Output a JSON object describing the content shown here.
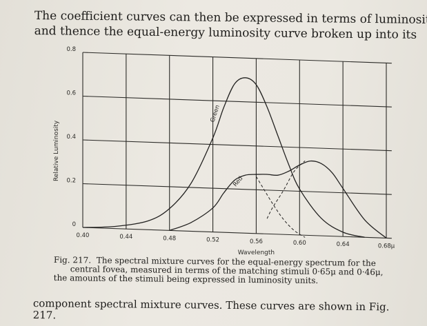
{
  "text": {
    "top_lines": [
      "The coefficient curves can then be expressed in terms of luminosity",
      "and thence the equal-energy luminosity curve broken up into its"
    ],
    "caption_label": "Fig. 217.",
    "caption_lines": [
      "The spectral mixture curves for the equal-energy spectrum for the",
      "central fovea, measured in terms of the matching stimuli 0·65μ and 0·46μ,",
      "the amounts of the stimuli being expressed in luminosity units."
    ],
    "bottom_lines": [
      "component spectral mixture curves.  These curves are shown in Fig.",
      "217."
    ]
  },
  "chart_data": {
    "type": "line",
    "xlabel": "Wavelength",
    "ylabel": "Relative Luminosity",
    "xlim": [
      0.4,
      0.68
    ],
    "ylim": [
      0,
      0.8
    ],
    "x_ticks": [
      "0.40",
      "0.44",
      "0.48",
      "0.52",
      "0.56",
      "0.60",
      "0.64",
      "0.68μ"
    ],
    "y_ticks": [
      "0",
      "0.2",
      "0.4",
      "0.6",
      "0.8"
    ],
    "grid": true,
    "series": [
      {
        "name": "Green",
        "x": [
          0.4,
          0.43,
          0.46,
          0.48,
          0.5,
          0.52,
          0.53,
          0.54,
          0.55,
          0.56,
          0.57,
          0.58,
          0.59,
          0.6,
          0.62,
          0.64,
          0.66
        ],
        "y": [
          0.0,
          0.01,
          0.04,
          0.1,
          0.22,
          0.43,
          0.57,
          0.68,
          0.71,
          0.68,
          0.58,
          0.45,
          0.32,
          0.21,
          0.08,
          0.02,
          0.0
        ]
      },
      {
        "name": "Red",
        "x": [
          0.48,
          0.5,
          0.52,
          0.53,
          0.54,
          0.55,
          0.56,
          0.57,
          0.58,
          0.59,
          0.6,
          0.61,
          0.62,
          0.63,
          0.64,
          0.66,
          0.68
        ],
        "y": [
          0.0,
          0.04,
          0.11,
          0.18,
          0.24,
          0.265,
          0.27,
          0.272,
          0.27,
          0.29,
          0.32,
          0.34,
          0.33,
          0.29,
          0.22,
          0.08,
          0.0
        ]
      },
      {
        "name": "",
        "style": "dashed",
        "x": [
          0.56,
          0.565,
          0.575,
          0.585,
          0.595,
          0.605
        ],
        "y": [
          0.26,
          0.22,
          0.14,
          0.07,
          0.02,
          -0.01
        ]
      },
      {
        "name": "",
        "style": "dashed",
        "x": [
          0.57,
          0.575,
          0.585,
          0.595,
          0.605
        ],
        "y": [
          0.07,
          0.12,
          0.2,
          0.29,
          0.34
        ]
      }
    ]
  }
}
